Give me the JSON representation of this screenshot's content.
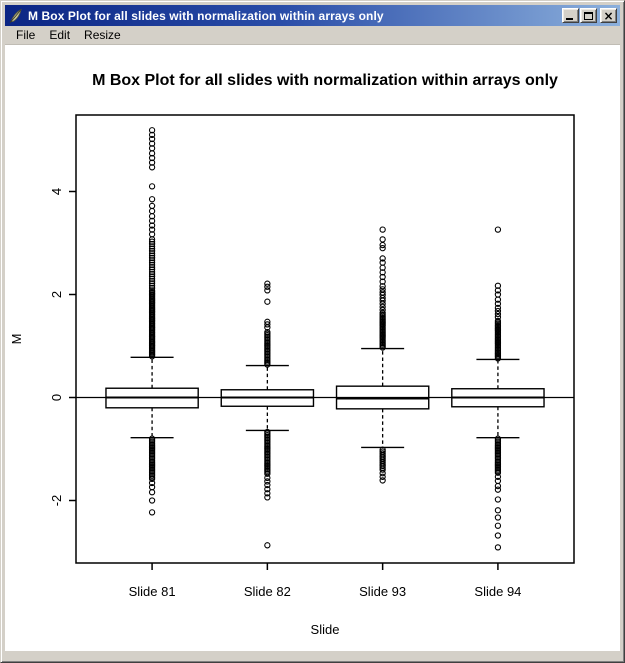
{
  "window": {
    "title": "M Box Plot for all slides with normalization within arrays only",
    "icon": "feather-quill",
    "controls": {
      "minimize": "minimize",
      "maximize": "maximize",
      "close_glyph": "×"
    },
    "colors": {
      "titlebar_left": "#0b2584",
      "titlebar_right": "#8cb0dc",
      "chrome": "#d4d0c8",
      "client_bg": "#ffffff"
    }
  },
  "menu": {
    "items": [
      "File",
      "Edit",
      "Resize"
    ]
  },
  "chart_data": {
    "type": "boxplot",
    "title": "M Box Plot for all slides with normalization within arrays only",
    "xlabel": "Slide",
    "ylabel": "M",
    "categories": [
      "Slide 81",
      "Slide 82",
      "Slide 93",
      "Slide 94"
    ],
    "y_ticks": [
      -2,
      0,
      2,
      4
    ],
    "ylim": [
      -3.2,
      5.5
    ],
    "xlim": [
      0.34,
      4.66
    ],
    "reference_line_y": 0,
    "grid": false,
    "series": [
      {
        "name": "Slide 81",
        "position": 1,
        "median": 0.0,
        "q1": -0.2,
        "q3": 0.18,
        "whisker_low": -0.78,
        "whisker_high": 0.78,
        "outlier_runs_high": [
          [
            0.8,
            2.05,
            0.025
          ],
          [
            2.08,
            3.1,
            0.045
          ]
        ],
        "outliers_high": [
          3.17,
          3.26,
          3.34,
          3.43,
          3.52,
          3.62,
          3.72,
          3.85,
          4.1,
          4.47,
          4.56,
          4.65,
          4.74,
          4.84,
          4.93,
          5.02,
          5.1,
          5.19
        ],
        "outlier_runs_low": [
          [
            -1.58,
            -0.8,
            0.03
          ]
        ],
        "outliers_low": [
          -1.66,
          -1.74,
          -1.84,
          -2.0,
          -2.23
        ]
      },
      {
        "name": "Slide 82",
        "position": 2,
        "median": 0.0,
        "q1": -0.17,
        "q3": 0.15,
        "whisker_low": -0.64,
        "whisker_high": 0.62,
        "outlier_runs_high": [
          [
            0.64,
            1.28,
            0.03
          ]
        ],
        "outliers_high": [
          1.36,
          1.42,
          1.47,
          1.86,
          2.08,
          2.15,
          2.21
        ],
        "outlier_runs_low": [
          [
            -1.48,
            -0.66,
            0.03
          ]
        ],
        "outliers_low": [
          -1.56,
          -1.63,
          -1.7,
          -1.78,
          -1.86,
          -1.94,
          -2.87
        ]
      },
      {
        "name": "Slide 93",
        "position": 3,
        "median": -0.02,
        "q1": -0.22,
        "q3": 0.22,
        "whisker_low": -0.97,
        "whisker_high": 0.95,
        "outlier_runs_high": [
          [
            0.97,
            1.65,
            0.028
          ]
        ],
        "outliers_high": [
          1.7,
          1.76,
          1.82,
          1.88,
          1.93,
          1.99,
          2.04,
          2.1,
          2.16,
          2.25,
          2.34,
          2.43,
          2.52,
          2.62,
          2.7,
          2.9,
          2.96,
          3.07,
          3.26
        ],
        "outlier_runs_low": [
          [
            -1.4,
            -0.99,
            0.035
          ]
        ],
        "outliers_low": [
          -1.47,
          -1.54,
          -1.61
        ]
      },
      {
        "name": "Slide 94",
        "position": 4,
        "median": 0.0,
        "q1": -0.18,
        "q3": 0.17,
        "whisker_low": -0.78,
        "whisker_high": 0.74,
        "outlier_runs_high": [
          [
            0.76,
            1.5,
            0.028
          ]
        ],
        "outliers_high": [
          1.56,
          1.62,
          1.68,
          1.74,
          1.82,
          1.9,
          2.0,
          2.08,
          2.17,
          3.26
        ],
        "outlier_runs_low": [
          [
            -1.46,
            -0.78,
            0.03
          ]
        ],
        "outliers_low": [
          -1.54,
          -1.62,
          -1.72,
          -1.79,
          -1.98,
          -2.19,
          -2.33,
          -2.49,
          -2.68,
          -2.91
        ]
      }
    ]
  }
}
